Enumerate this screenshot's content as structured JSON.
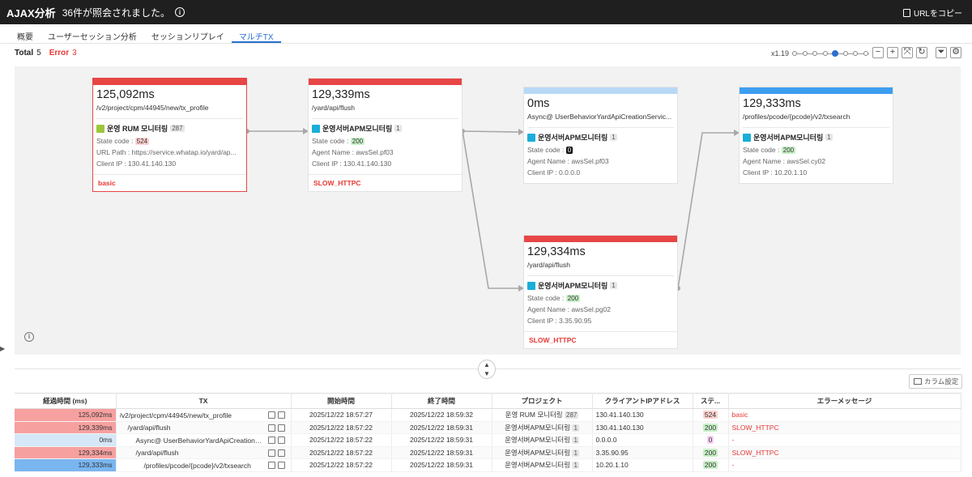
{
  "header": {
    "title": "AJAX分析",
    "subtitle": "36件が照会されました。",
    "copy_url": "URLをコピー"
  },
  "tabs": [
    {
      "label": "概要"
    },
    {
      "label": "ユーザーセッション分析"
    },
    {
      "label": "セッションリプレイ"
    },
    {
      "label": "マルチTX",
      "active": true
    }
  ],
  "summary": {
    "total_label": "Total",
    "total_value": "5",
    "error_label": "Error",
    "error_value": "3"
  },
  "zoom": {
    "label": "x1.19",
    "steps": 8,
    "current_index": 4
  },
  "nodes": [
    {
      "time": "125,092ms",
      "url": "/v2/project/cpm/44945/new/tx_profile",
      "bar_color": "#e84545",
      "project_icon": "rum-icon",
      "project_icon_color": "#9bc83a",
      "project": "운영 RUM 모니터링",
      "count": "287",
      "state_label": "State code :",
      "state": "524",
      "state_type": "err",
      "line2": "URL Path : https://service.whatap.io/yard/ap...",
      "line3": "Client IP : 130.41.140.130",
      "footer": "basic"
    },
    {
      "time": "129,339ms",
      "url": "/yard/api/flush",
      "bar_color": "#e84545",
      "project_icon": "apm-icon",
      "project_icon_color": "#1aaed8",
      "project": "운영서버APM모니터링",
      "count": "1",
      "state_label": "State code :",
      "state": "200",
      "state_type": "ok",
      "line2": "Agent Name : awsSel.pf03",
      "line3": "Client IP : 130.41.140.130",
      "footer": "SLOW_HTTPC"
    },
    {
      "time": "0ms",
      "url": "Async@ UserBehaviorYardApiCreationServic...",
      "bar_color": "#b8d9f5",
      "project_icon": "apm-icon",
      "project_icon_color": "#1aaed8",
      "project": "운영서버APM모니터링",
      "count": "1",
      "state_label": "State code :",
      "state": "0",
      "state_type": "zero",
      "line2": "Agent Name : awsSel.pf03",
      "line3": "Client IP : 0.0.0.0",
      "footer": ""
    },
    {
      "time": "129,333ms",
      "url": "/profiles/pcode/{pcode}/v2/txsearch",
      "bar_color": "#3d9ef0",
      "project_icon": "apm-icon",
      "project_icon_color": "#1aaed8",
      "project": "운영서버APM모니터링",
      "count": "1",
      "state_label": "State code :",
      "state": "200",
      "state_type": "ok",
      "line2": "Agent Name : awsSel.cy02",
      "line3": "Client IP : 10.20.1.10",
      "footer": ""
    },
    {
      "time": "129,334ms",
      "url": "/yard/api/flush",
      "bar_color": "#e84545",
      "project_icon": "apm-icon",
      "project_icon_color": "#1aaed8",
      "project": "운영서버APM모니터링",
      "count": "1",
      "state_label": "State code :",
      "state": "200",
      "state_type": "ok",
      "line2": "Agent Name : awsSel.pg02",
      "line3": "Client IP : 3.35.90.95",
      "footer": "SLOW_HTTPC"
    }
  ],
  "table": {
    "column_settings": "カラム設定",
    "headers": [
      "経過時間 (ms)",
      "TX",
      "開始時間",
      "終了時間",
      "プロジェクト",
      "クライアントIPアドレス",
      "ステ...",
      "エラーメッセージ"
    ],
    "rows": [
      {
        "elapsed": "125,092ms",
        "elapsed_color": "#f7a0a0",
        "tx": "/v2/project/cpm/44945/new/tx_profile",
        "start": "2025/12/22 18:57:27",
        "end": "2025/12/22 18:59:32",
        "project": "운영 RUM 모니터링",
        "count": "287",
        "ip": "130.41.140.130",
        "status": "524",
        "status_color": "#ffd0d0",
        "error": "basic"
      },
      {
        "elapsed": "129,339ms",
        "elapsed_color": "#f7a0a0",
        "tx": "/yard/api/flush",
        "start": "2025/12/22 18:57:22",
        "end": "2025/12/22 18:59:31",
        "project": "운영서버APM모니터링",
        "count": "1",
        "ip": "130.41.140.130",
        "status": "200",
        "status_color": "#c6f0c6",
        "error": "SLOW_HTTPC"
      },
      {
        "elapsed": "0ms",
        "elapsed_color": "#d6e8f8",
        "tx": "Async@ UserBehaviorYardApiCreationServi...",
        "start": "2025/12/22 18:57:22",
        "end": "2025/12/22 18:59:31",
        "project": "운영서버APM모니터링",
        "count": "1",
        "ip": "0.0.0.0",
        "status": "0",
        "status_color": "#fbd0f5",
        "error": "-"
      },
      {
        "elapsed": "129,334ms",
        "elapsed_color": "#f7a0a0",
        "tx": "/yard/api/flush",
        "start": "2025/12/22 18:57:22",
        "end": "2025/12/22 18:59:31",
        "project": "운영서버APM모니터링",
        "count": "1",
        "ip": "3.35.90.95",
        "status": "200",
        "status_color": "#c6f0c6",
        "error": "SLOW_HTTPC"
      },
      {
        "elapsed": "129,333ms",
        "elapsed_color": "#7ab6f0",
        "tx": "/profiles/pcode/{pcode}/v2/txsearch",
        "start": "2025/12/22 18:57:22",
        "end": "2025/12/22 18:59:31",
        "project": "운영서버APM모니터링",
        "count": "1",
        "ip": "10.20.1.10",
        "status": "200",
        "status_color": "#c6f0c6",
        "error": "-"
      }
    ]
  }
}
